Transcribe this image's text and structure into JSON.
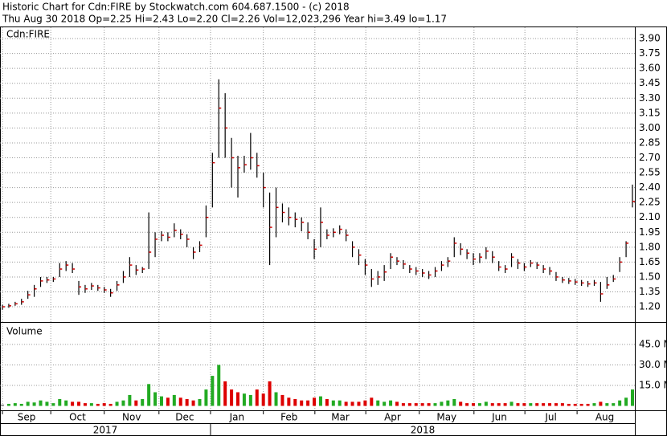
{
  "chart_data": {
    "type": "ohlc",
    "title": "Historic Chart for Cdn:FIRE by Stockwatch.com 604.687.1500 - (c) 2018",
    "subtitle": "Thu Aug 30 2018  Op=2.25  Hi=2.43  Lo=2.20  Cl=2.26  Vol=12,023,296  Year hi=3.49  lo=1.17",
    "symbol_label": "Cdn:FIRE",
    "volume_label": "Volume",
    "year_labels": [
      "2017",
      "2018"
    ],
    "grid": true,
    "bar_color": "#000000",
    "close_color": "#cc0000",
    "up_color": "#22aa22",
    "down_color": "#dd0000",
    "flat_color": "#888888",
    "xlim": [
      0,
      99
    ],
    "xticks": [
      {
        "value": 0,
        "label": "Sep"
      },
      {
        "value": 7.6,
        "label": "Oct"
      },
      {
        "value": 16,
        "label": "Nov"
      },
      {
        "value": 24.6,
        "label": "Dec"
      },
      {
        "value": 32.7,
        "label": "Jan"
      },
      {
        "value": 41,
        "label": "Feb"
      },
      {
        "value": 49.1,
        "label": "Mar"
      },
      {
        "value": 57.1,
        "label": "Apr"
      },
      {
        "value": 65.5,
        "label": "May"
      },
      {
        "value": 74.1,
        "label": "Jun"
      },
      {
        "value": 82.1,
        "label": "Jul"
      },
      {
        "value": 90.3,
        "label": "Aug"
      }
    ],
    "ylim": [
      1.055,
      3.965
    ],
    "yticks": [
      {
        "value": 1.2,
        "label": "1.20"
      },
      1.35,
      {
        "value": 1.5,
        "label": "1.50"
      },
      1.65,
      {
        "value": 1.8,
        "label": "1.80"
      },
      1.95,
      {
        "value": 2.1,
        "label": "2.10"
      },
      2.25,
      {
        "value": 2.4,
        "label": "2.40"
      },
      2.55,
      {
        "value": 2.7,
        "label": "2.70"
      },
      2.85,
      {
        "value": 3.0,
        "label": "3.00"
      },
      3.15,
      {
        "value": 3.3,
        "label": "3.30"
      },
      3.45,
      {
        "value": 3.6,
        "label": "3.60"
      },
      3.75,
      {
        "value": 3.9,
        "label": "3.90"
      }
    ],
    "y2lim": [
      0,
      60.9
    ],
    "y2ticks": [
      {
        "value": 15,
        "label": "15.0 M"
      },
      {
        "value": 30,
        "label": "30.0 M"
      },
      {
        "value": 45,
        "label": "45.0 M"
      }
    ],
    "high": [
      1.22,
      1.23,
      1.25,
      1.28,
      1.36,
      1.42,
      1.5,
      1.5,
      1.5,
      1.64,
      1.66,
      1.64,
      1.46,
      1.42,
      1.44,
      1.42,
      1.4,
      1.38,
      1.46,
      1.56,
      1.7,
      1.62,
      1.6,
      2.15,
      1.95,
      1.96,
      1.95,
      2.04,
      1.98,
      1.93,
      1.8,
      1.86,
      2.22,
      2.75,
      3.49,
      3.35,
      2.9,
      2.72,
      2.72,
      2.95,
      2.75,
      2.55,
      2.35,
      2.4,
      2.24,
      2.2,
      2.15,
      2.1,
      2.05,
      1.88,
      2.2,
      1.98,
      1.99,
      2.02,
      1.98,
      1.86,
      1.78,
      1.68,
      1.58,
      1.56,
      1.62,
      1.74,
      1.7,
      1.67,
      1.62,
      1.6,
      1.58,
      1.56,
      1.6,
      1.66,
      1.7,
      1.9,
      1.84,
      1.78,
      1.74,
      1.74,
      1.8,
      1.76,
      1.66,
      1.62,
      1.74,
      1.68,
      1.64,
      1.67,
      1.65,
      1.62,
      1.6,
      1.55,
      1.5,
      1.49,
      1.48,
      1.47,
      1.46,
      1.47,
      1.45,
      1.5,
      1.52,
      1.7,
      1.86,
      2.43
    ],
    "low": [
      1.17,
      1.19,
      1.21,
      1.22,
      1.28,
      1.3,
      1.4,
      1.44,
      1.45,
      1.5,
      1.56,
      1.54,
      1.32,
      1.34,
      1.37,
      1.36,
      1.34,
      1.3,
      1.36,
      1.44,
      1.5,
      1.52,
      1.54,
      1.58,
      1.7,
      1.86,
      1.86,
      1.9,
      1.88,
      1.8,
      1.68,
      1.75,
      1.9,
      2.2,
      2.7,
      2.7,
      2.4,
      2.3,
      2.55,
      2.58,
      2.5,
      2.2,
      1.62,
      1.9,
      2.05,
      2.02,
      2.0,
      1.96,
      1.88,
      1.68,
      1.8,
      1.88,
      1.9,
      1.93,
      1.86,
      1.7,
      1.62,
      1.52,
      1.4,
      1.42,
      1.46,
      1.58,
      1.62,
      1.58,
      1.54,
      1.52,
      1.5,
      1.48,
      1.5,
      1.56,
      1.6,
      1.7,
      1.72,
      1.68,
      1.62,
      1.64,
      1.68,
      1.64,
      1.56,
      1.54,
      1.6,
      1.58,
      1.56,
      1.6,
      1.58,
      1.54,
      1.52,
      1.46,
      1.44,
      1.43,
      1.42,
      1.41,
      1.4,
      1.41,
      1.25,
      1.38,
      1.45,
      1.55,
      1.7,
      2.2
    ],
    "close": [
      1.2,
      1.21,
      1.23,
      1.25,
      1.32,
      1.38,
      1.46,
      1.47,
      1.48,
      1.58,
      1.62,
      1.58,
      1.4,
      1.38,
      1.41,
      1.39,
      1.37,
      1.34,
      1.42,
      1.5,
      1.62,
      1.57,
      1.58,
      1.75,
      1.88,
      1.92,
      1.9,
      1.97,
      1.93,
      1.88,
      1.75,
      1.82,
      2.1,
      2.65,
      3.2,
      3.0,
      2.7,
      2.6,
      2.63,
      2.7,
      2.62,
      2.4,
      2.0,
      2.2,
      2.15,
      2.1,
      2.08,
      2.05,
      1.95,
      1.78,
      2.05,
      1.92,
      1.95,
      1.98,
      1.92,
      1.8,
      1.72,
      1.62,
      1.48,
      1.5,
      1.55,
      1.7,
      1.66,
      1.63,
      1.58,
      1.56,
      1.54,
      1.52,
      1.56,
      1.62,
      1.66,
      1.84,
      1.78,
      1.74,
      1.68,
      1.7,
      1.76,
      1.7,
      1.6,
      1.58,
      1.7,
      1.64,
      1.6,
      1.64,
      1.62,
      1.58,
      1.56,
      1.5,
      1.47,
      1.46,
      1.45,
      1.44,
      1.43,
      1.44,
      1.33,
      1.42,
      1.48,
      1.65,
      1.84,
      2.26
    ],
    "volume": [
      1,
      1.5,
      2,
      1.5,
      3,
      2.5,
      4,
      3,
      2,
      5,
      4,
      3,
      3,
      2,
      2,
      1.5,
      2,
      1.5,
      3,
      4,
      8,
      4,
      5,
      16,
      10,
      7,
      6,
      8,
      6,
      5,
      4,
      5,
      12,
      22,
      30,
      18,
      12,
      10,
      9,
      8,
      12,
      9,
      18,
      10,
      8,
      6,
      5,
      4,
      4,
      6,
      7,
      5,
      4,
      4,
      3,
      3,
      3,
      4,
      6,
      4,
      3,
      4,
      3,
      2,
      2,
      2,
      2,
      2,
      2,
      3,
      4,
      5,
      3,
      2,
      2,
      2,
      3,
      2,
      2,
      2,
      3,
      2,
      2,
      2,
      2,
      2,
      2,
      2,
      2,
      1.5,
      1.5,
      1.5,
      1.5,
      2,
      3,
      2,
      2,
      4,
      6,
      12.02
    ]
  }
}
